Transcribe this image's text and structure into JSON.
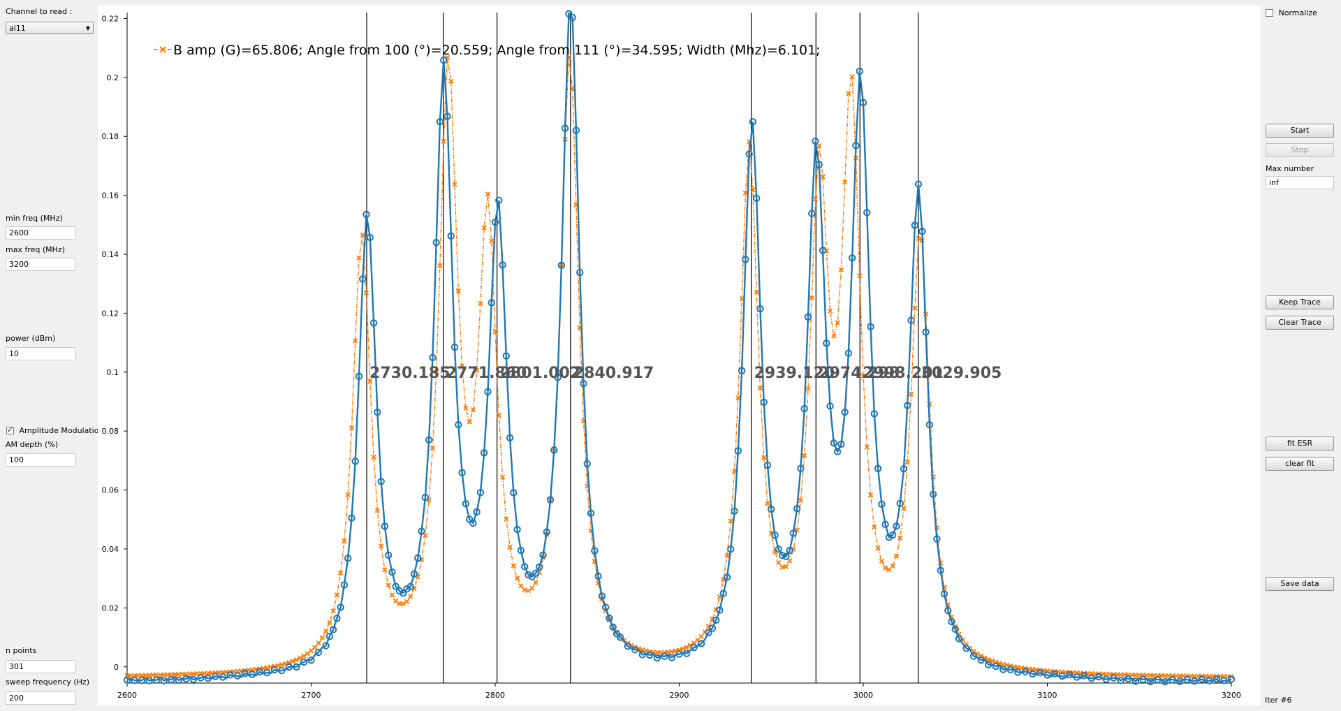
{
  "left_panel": {
    "channel_label": "Channel to read :",
    "channel_value": "ai11",
    "min_freq_label": "min freq (MHz)",
    "min_freq_value": "2600",
    "max_freq_label": "max freq (MHz)",
    "max_freq_value": "3200",
    "power_label": "power (dBm)",
    "power_value": "10",
    "am_label": "Amplitude Modulation",
    "am_checked": true,
    "am_depth_label": "AM depth (%)",
    "am_depth_value": "100",
    "n_points_label": "n points",
    "n_points_value": "301",
    "sweep_label": "sweep frequency (Hz)",
    "sweep_value": "200"
  },
  "right_panel": {
    "normalize_label": "Normalize",
    "start_label": "Start",
    "stop_label": "Stop",
    "max_number_label": "Max number",
    "max_number_value": "inf",
    "keep_trace_label": "Keep Trace",
    "clear_trace_label": "Clear Trace",
    "fit_esr_label": "fit ESR",
    "clear_fit_label": "clear fit",
    "save_data_label": "Save data",
    "iter_label": "Iter #6"
  },
  "colors": {
    "data_series": "#1f77b4",
    "fit_series": "#ff7f0e",
    "marker_line": "#000000"
  },
  "chart_data": {
    "type": "line",
    "legend_text": "B amp (G)=65.806; Angle from 100 (°)=20.559; Angle from 111 (°)=34.595; Width (Mhz)=6.101;",
    "legend_position": "top-left",
    "xlim": [
      2600,
      3200
    ],
    "ylim": [
      -0.0055,
      0.222
    ],
    "x_ticks": [
      "2600",
      "2700",
      "2800",
      "2900",
      "3000",
      "3100",
      "3200"
    ],
    "y_ticks": [
      "0",
      "0.02",
      "0.04",
      "0.06",
      "0.08",
      "0.1",
      "0.12",
      "0.14",
      "0.16",
      "0.18",
      "0.2",
      "0.22"
    ],
    "baseline": -0.005,
    "data_series": {
      "marker": "circle",
      "peaks": [
        {
          "center": 2730.5,
          "amplitude": 0.154,
          "width": 6.0
        },
        {
          "center": 2772.0,
          "amplitude": 0.2,
          "width": 6.0
        },
        {
          "center": 2801.5,
          "amplitude": 0.15,
          "width": 6.0
        },
        {
          "center": 2841.0,
          "amplitude": 0.226,
          "width": 6.0
        },
        {
          "center": 2939.5,
          "amplitude": 0.182,
          "width": 6.0
        },
        {
          "center": 2974.5,
          "amplitude": 0.166,
          "width": 6.0
        },
        {
          "center": 2998.5,
          "amplitude": 0.191,
          "width": 6.0
        },
        {
          "center": 3030.0,
          "amplitude": 0.16,
          "width": 6.0
        }
      ]
    },
    "fit_series": {
      "marker": "x",
      "peaks": [
        {
          "center": 2727.5,
          "amplitude": 0.146,
          "width": 6.1
        },
        {
          "center": 2774.5,
          "amplitude": 0.197,
          "width": 6.1
        },
        {
          "center": 2796.0,
          "amplitude": 0.144,
          "width": 6.1
        },
        {
          "center": 2840.5,
          "amplitude": 0.206,
          "width": 6.1
        },
        {
          "center": 2938.0,
          "amplitude": 0.174,
          "width": 6.1
        },
        {
          "center": 2976.0,
          "amplitude": 0.154,
          "width": 6.1
        },
        {
          "center": 2993.5,
          "amplitude": 0.183,
          "width": 6.1
        },
        {
          "center": 3031.0,
          "amplitude": 0.145,
          "width": 6.1
        }
      ]
    },
    "marker_lines": [
      {
        "x": 2730.185,
        "label": "2730.185"
      },
      {
        "x": 2771.86,
        "label": "2771.860"
      },
      {
        "x": 2801.002,
        "label": "2801.002"
      },
      {
        "x": 2840.917,
        "label": "2840.917"
      },
      {
        "x": 2939.12,
        "label": "2939.120"
      },
      {
        "x": 2974.298,
        "label": "2974.298"
      },
      {
        "x": 2998.201,
        "label": "2998.201"
      },
      {
        "x": 3029.905,
        "label": "3029.905"
      }
    ],
    "marker_label_y": 0.1
  }
}
